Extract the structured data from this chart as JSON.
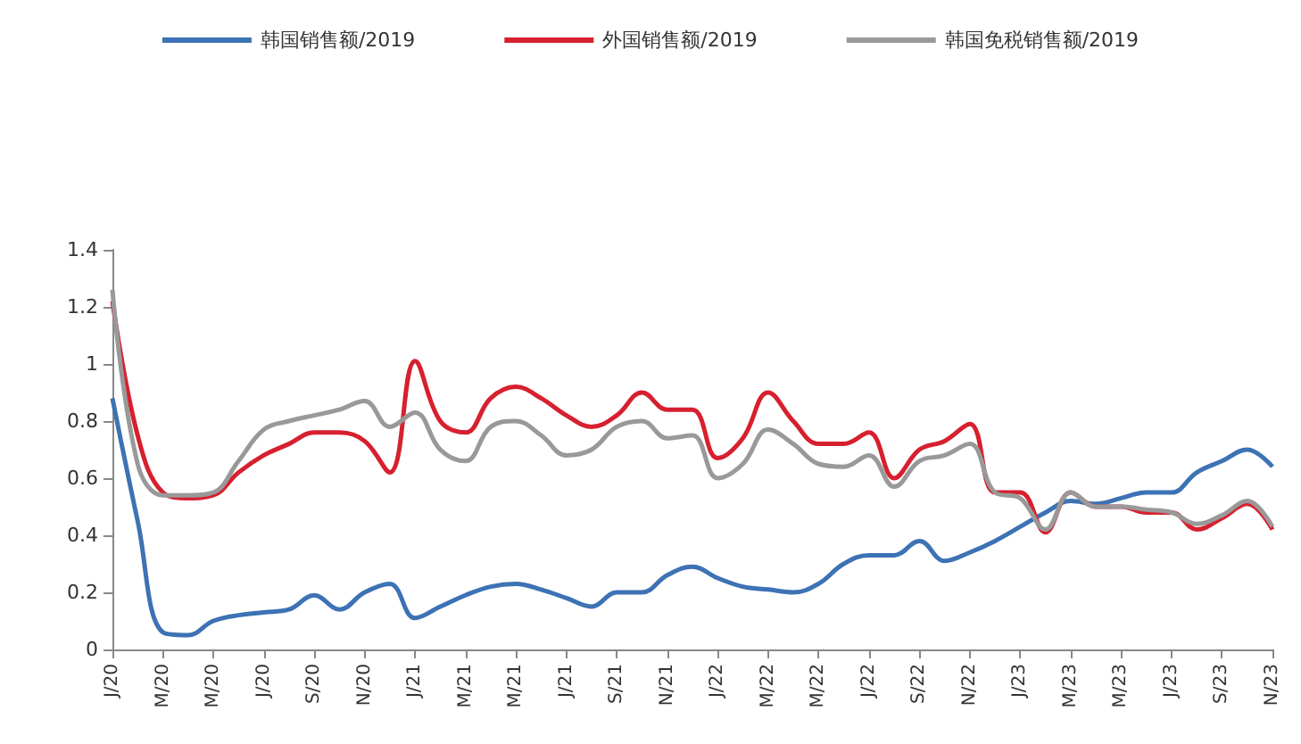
{
  "chart_data": {
    "type": "line",
    "categories": [
      "J/20",
      null,
      "M/20",
      null,
      "M/20",
      null,
      "J/20",
      null,
      "S/20",
      null,
      "N/20",
      null,
      "J/21",
      null,
      "M/21",
      null,
      "M/21",
      null,
      "J/21",
      null,
      "S/21",
      null,
      "N/21",
      null,
      "J/22",
      null,
      "M/22",
      null,
      "M/22",
      null,
      "J/22",
      null,
      "S/22",
      null,
      "N/22",
      null,
      "J/23",
      null,
      "M/23",
      null,
      "M/23",
      null,
      "J/23",
      null,
      "S/23",
      null,
      "N/23"
    ],
    "series": [
      {
        "name": "韩国销售额/2019",
        "color": "#3d72b4",
        "values": [
          0.88,
          0.45,
          0.06,
          0.05,
          0.1,
          0.12,
          0.13,
          0.14,
          0.19,
          0.14,
          0.2,
          0.23,
          0.11,
          0.15,
          0.19,
          0.22,
          0.23,
          0.21,
          0.18,
          0.15,
          0.2,
          0.2,
          0.26,
          0.29,
          0.25,
          0.22,
          0.21,
          0.2,
          0.23,
          0.3,
          0.33,
          0.33,
          0.38,
          0.31,
          0.34,
          0.38,
          0.43,
          0.48,
          0.52,
          0.51,
          0.53,
          0.55,
          0.55,
          0.62,
          0.66,
          0.7,
          0.64
        ]
      },
      {
        "name": "外国销售额/2019",
        "color": "#d7202f",
        "values": [
          1.22,
          0.75,
          0.55,
          0.53,
          0.54,
          0.62,
          0.68,
          0.72,
          0.76,
          0.76,
          0.73,
          0.62,
          1.01,
          0.8,
          0.76,
          0.88,
          0.92,
          0.88,
          0.82,
          0.78,
          0.82,
          0.9,
          0.84,
          0.84,
          0.67,
          0.74,
          0.9,
          0.8,
          0.72,
          0.72,
          0.76,
          0.6,
          0.7,
          0.73,
          0.79,
          0.55,
          0.55,
          0.41,
          0.55,
          0.5,
          0.5,
          0.48,
          0.48,
          0.42,
          0.46,
          0.51,
          0.42
        ]
      },
      {
        "name": "韩国免税销售额/2019",
        "color": "#999999",
        "values": [
          1.26,
          0.65,
          0.54,
          0.54,
          0.55,
          0.66,
          0.77,
          0.8,
          0.82,
          0.84,
          0.87,
          0.78,
          0.83,
          0.7,
          0.66,
          0.78,
          0.8,
          0.75,
          0.68,
          0.7,
          0.78,
          0.8,
          0.74,
          0.75,
          0.6,
          0.65,
          0.77,
          0.72,
          0.65,
          0.64,
          0.68,
          0.57,
          0.66,
          0.68,
          0.72,
          0.55,
          0.53,
          0.42,
          0.55,
          0.5,
          0.5,
          0.49,
          0.48,
          0.44,
          0.47,
          0.52,
          0.43
        ]
      }
    ],
    "ylim": [
      0,
      1.4
    ],
    "yticks": [
      0,
      0.2,
      0.4,
      0.6,
      0.8,
      1,
      1.2,
      1.4
    ],
    "grid": false,
    "legend": "top",
    "marker": "none",
    "line_style": "solid"
  }
}
